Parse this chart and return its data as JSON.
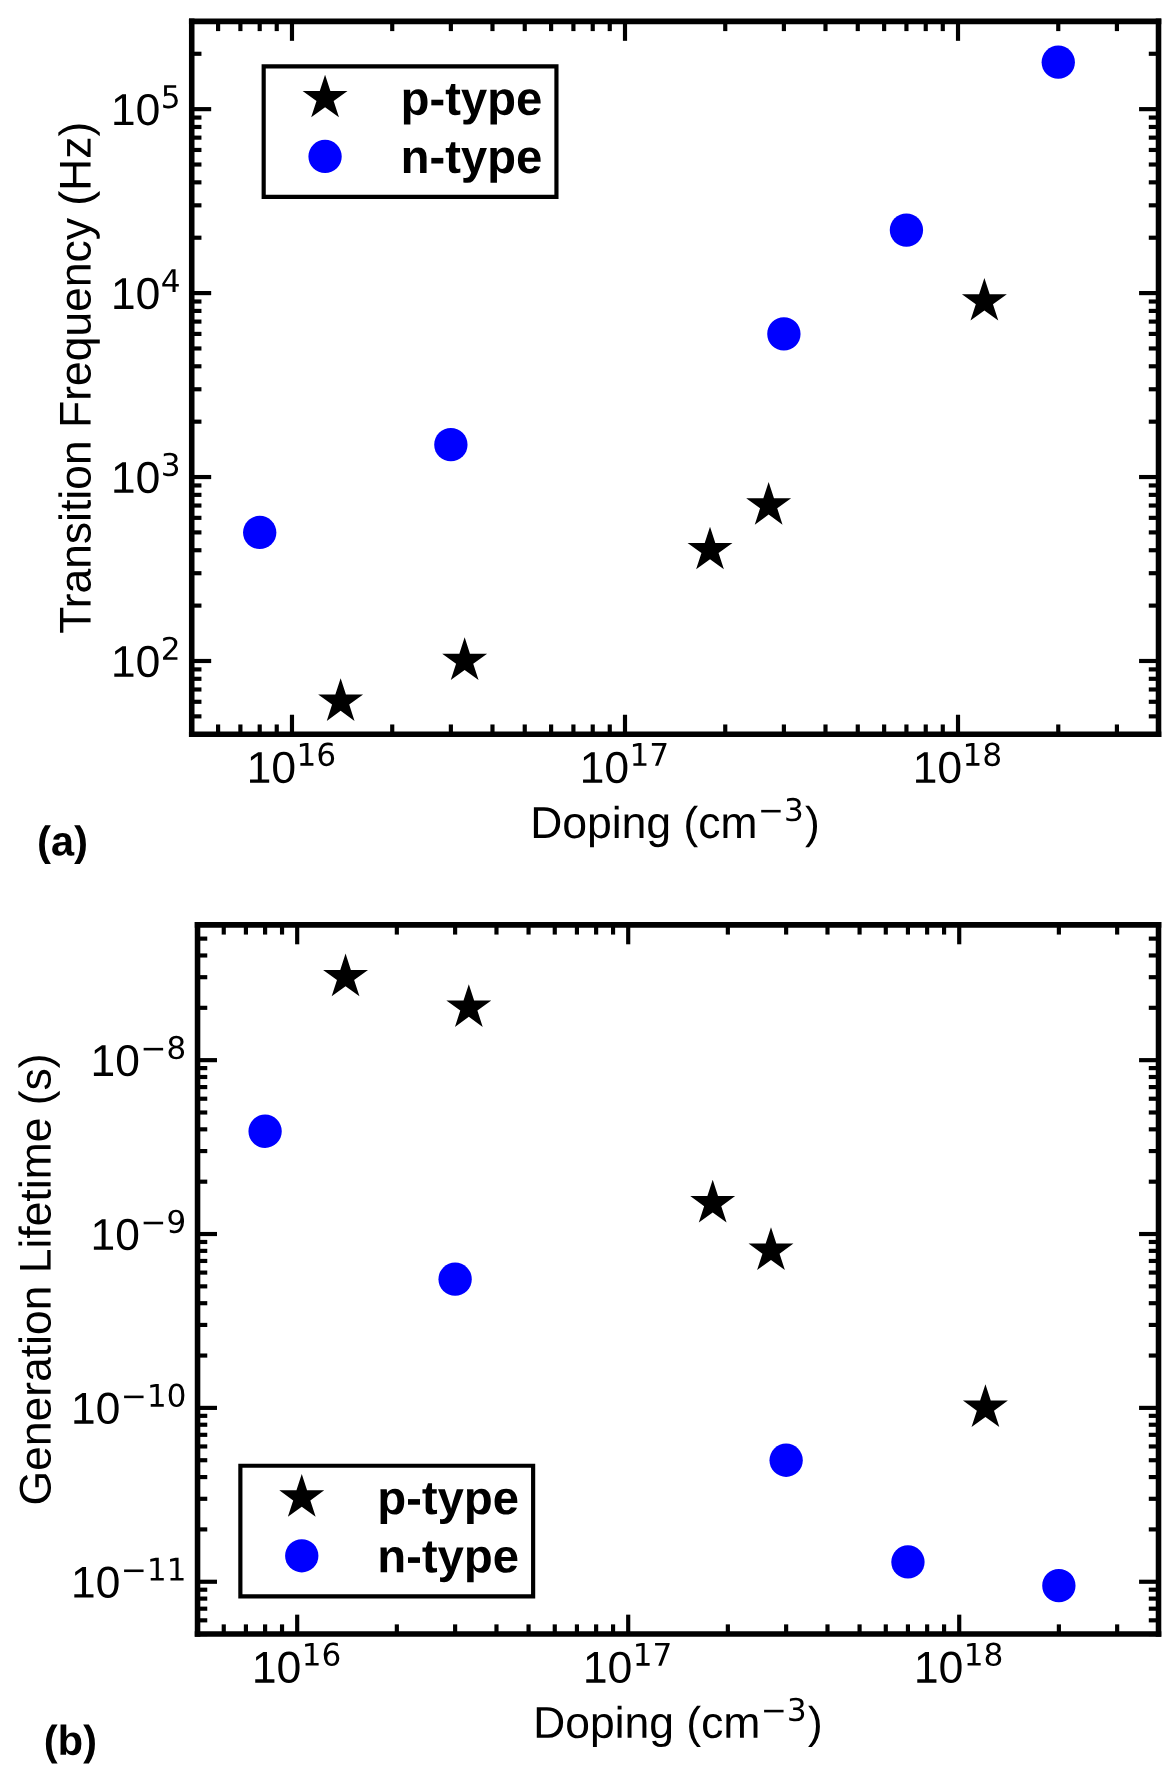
{
  "chart_data": [
    {
      "type": "scatter",
      "xlabel": "Doping (cm$^{−3}$)",
      "ylabel": "Transition Frequency (Hz)",
      "log": "xy",
      "legend": "top left",
      "grid": false,
      "annotations": [
        "(a)"
      ],
      "xlim": [
        5000000000000000.0,
        4e+18
      ],
      "xticks": [
        {
          "value": 1e+16,
          "label": "10$^{16}$"
        },
        {
          "value": 1e+17,
          "label": "10$^{17}$"
        },
        {
          "value": 1e+18,
          "label": "10$^{18}$"
        }
      ],
      "ylim": [
        40,
        300000
      ],
      "yticks": [
        {
          "value": 100,
          "label": "10$^{2}$"
        },
        {
          "value": 1000,
          "label": "10$^{3}$"
        },
        {
          "value": 10000,
          "label": "10$^{4}$"
        },
        {
          "value": 100000,
          "label": "10$^{5}$"
        }
      ],
      "series": [
        {
          "name": "p-type",
          "color": "#000000",
          "marker": "star",
          "x": [
            1.4e+16,
            3.3e+16,
            1.8e+17,
            2.7e+17,
            1.2e+18
          ],
          "values": [
            60,
            100,
            400,
            700,
            9000
          ]
        },
        {
          "name": "n-type",
          "color": "#0000ff",
          "marker": "circle",
          "x": [
            8000000000000000.0,
            3e+16,
            3e+17,
            7e+17,
            2e+18
          ],
          "values": [
            500,
            1500,
            6000,
            22000,
            180000
          ]
        }
      ]
    },
    {
      "type": "scatter",
      "xlabel": "Doping (cm$^{−3}$)",
      "ylabel": "Generation Lifetime (s)",
      "log": "xy",
      "legend": "bottom left",
      "grid": false,
      "annotations": [
        "(b)"
      ],
      "xlim": [
        5000000000000000.0,
        4e+18
      ],
      "xticks": [
        {
          "value": 1e+16,
          "label": "10$^{16}$"
        },
        {
          "value": 1e+17,
          "label": "10$^{17}$"
        },
        {
          "value": 1e+18,
          "label": "10$^{18}$"
        }
      ],
      "ylim": [
        5e-12,
        6e-08
      ],
      "yticks": [
        {
          "value": 1e-11,
          "label": "10$^{−11}$"
        },
        {
          "value": 1e-10,
          "label": "10$^{−10}$"
        },
        {
          "value": 1e-09,
          "label": "10$^{−9}$"
        },
        {
          "value": 1e-08,
          "label": "10$^{−8}$"
        }
      ],
      "series": [
        {
          "name": "p-type",
          "color": "#000000",
          "marker": "star",
          "x": [
            1.4e+16,
            3.3e+16,
            1.8e+17,
            2.7e+17,
            1.2e+18
          ],
          "values": [
            3e-08,
            2e-08,
            1.5e-09,
            8e-10,
            1e-10
          ]
        },
        {
          "name": "n-type",
          "color": "#0000ff",
          "marker": "circle",
          "x": [
            8000000000000000.0,
            3e+16,
            3e+17,
            7e+17,
            2e+18
          ],
          "values": [
            3.9e-09,
            5.5e-10,
            5e-11,
            1.3e-11,
            9.5e-12
          ]
        }
      ]
    }
  ]
}
